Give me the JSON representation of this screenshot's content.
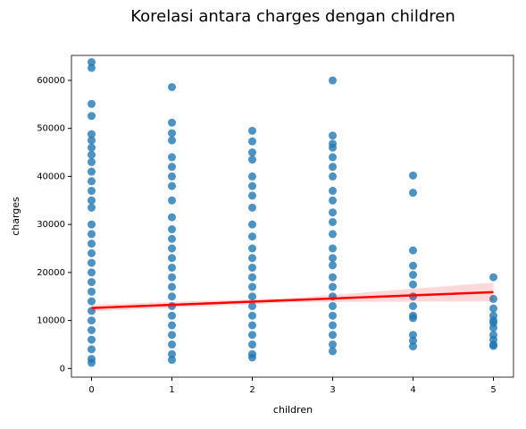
{
  "chart_data": {
    "type": "scatter",
    "title": "Korelasi antara charges dengan children",
    "x_label": "children",
    "y_label": "charges",
    "xlim": [
      -0.25,
      5.25
    ],
    "ylim": [
      -1800,
      65200
    ],
    "xticks": [
      0,
      1,
      2,
      3,
      4,
      5
    ],
    "yticks": [
      0,
      10000,
      20000,
      30000,
      40000,
      50000,
      60000
    ],
    "series": [
      {
        "color": "#1f77b4",
        "x": [
          0,
          0,
          0,
          0,
          0,
          0,
          0,
          0,
          0,
          0,
          0,
          0,
          0,
          0,
          0,
          0,
          0,
          0,
          0,
          0,
          0,
          0,
          0,
          0,
          0,
          0,
          0,
          0,
          0,
          0,
          1,
          1,
          1,
          1,
          1,
          1,
          1,
          1,
          1,
          1,
          1,
          1,
          1,
          1,
          1,
          1,
          1,
          1,
          1,
          1,
          1,
          1,
          1,
          1,
          1,
          2,
          2,
          2,
          2,
          2,
          2,
          2,
          2,
          2,
          2,
          2,
          2,
          2,
          2,
          2,
          2,
          2,
          2,
          2,
          2,
          2,
          2,
          2,
          3,
          3,
          3,
          3,
          3,
          3,
          3,
          3,
          3,
          3,
          3,
          3,
          3,
          3,
          3,
          3,
          3,
          3,
          3,
          3,
          3,
          3,
          3,
          3,
          4,
          4,
          4,
          4,
          4,
          4,
          4,
          4,
          4,
          4,
          4,
          4,
          4,
          5,
          5,
          5,
          5,
          5,
          5,
          5,
          5,
          5,
          5,
          5
        ],
        "values": [
          63800,
          62600,
          55100,
          52600,
          48800,
          47500,
          46000,
          44500,
          43000,
          41000,
          39000,
          37000,
          35000,
          33500,
          30000,
          28000,
          26000,
          24000,
          22000,
          20000,
          18000,
          16000,
          14000,
          12000,
          10000,
          8000,
          6000,
          4000,
          2000,
          1200,
          58600,
          51200,
          49000,
          47500,
          44000,
          42000,
          40000,
          38000,
          35000,
          31500,
          29000,
          27000,
          25000,
          23000,
          21000,
          19000,
          17000,
          15000,
          13000,
          11000,
          9000,
          7000,
          5000,
          3000,
          1800,
          49500,
          47300,
          45000,
          43500,
          40000,
          38000,
          36000,
          33500,
          30000,
          27500,
          25000,
          23000,
          21000,
          19000,
          17000,
          15000,
          13000,
          11000,
          9000,
          7000,
          5000,
          3000,
          2300,
          60000,
          48500,
          46800,
          46000,
          44000,
          42000,
          40000,
          37000,
          35000,
          32500,
          30500,
          28000,
          25000,
          23000,
          21500,
          19000,
          17000,
          15000,
          13000,
          11000,
          9000,
          7000,
          5000,
          3600,
          40200,
          36600,
          24600,
          21400,
          19500,
          17500,
          15000,
          13000,
          11000,
          10500,
          7000,
          5800,
          4600,
          19000,
          14500,
          12500,
          11000,
          10000,
          9500,
          8500,
          7000,
          6000,
          5000,
          4700
        ]
      }
    ],
    "regression": {
      "color": "red",
      "x": [
        0,
        2.5,
        5
      ],
      "y": [
        12600,
        14250,
        15900
      ],
      "ci_lower": [
        11900,
        13800,
        14000
      ],
      "ci_upper": [
        13300,
        14700,
        17900
      ]
    }
  }
}
